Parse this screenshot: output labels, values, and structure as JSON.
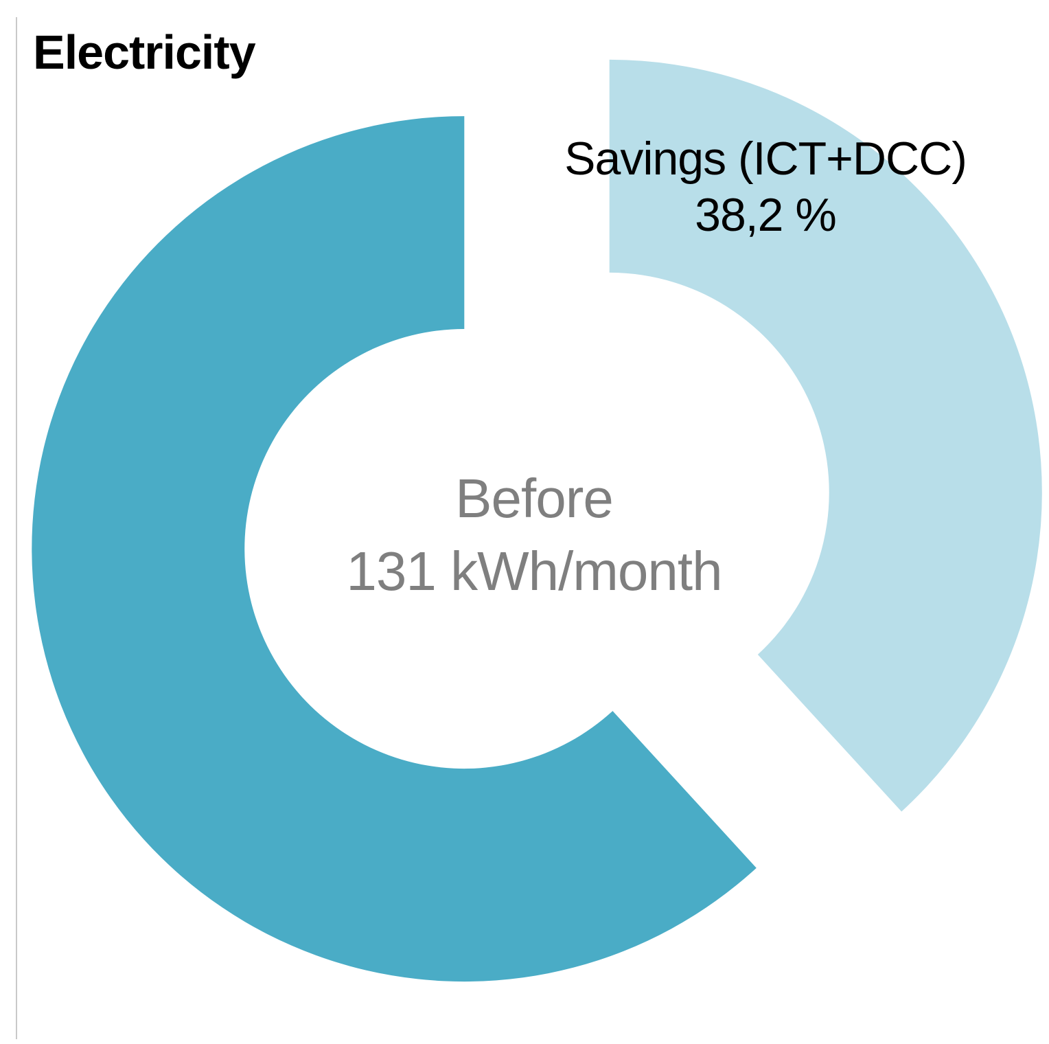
{
  "title": "Electricity",
  "chart_data": {
    "type": "pie",
    "subtype": "donut",
    "title": "Electricity",
    "unit": "%",
    "start_angle_deg": 0,
    "direction": "clockwise",
    "hole_ratio": 0.508,
    "explode_ratio": 0.18,
    "legend_position": "none",
    "slices": [
      {
        "name": "Savings (ICT+DCC)",
        "value_pct": 38.2,
        "color": "#B8DEE9",
        "label_line1": "Savings (ICT+DCC)",
        "label_line2": "38,2 %"
      },
      {
        "name": "Before",
        "value_pct": 61.8,
        "color": "#4AACC6",
        "label_line1": "",
        "label_line2": ""
      }
    ],
    "center_label": {
      "line1": "Before",
      "line2": "131 kWh/month"
    }
  },
  "colors": {
    "slice_dark": "#4AACC6",
    "slice_light": "#B8DEE9",
    "center_text": "#7F7F7F",
    "label_text": "#000000",
    "rule": "#C9C9C9",
    "background": "#FFFFFF"
  }
}
